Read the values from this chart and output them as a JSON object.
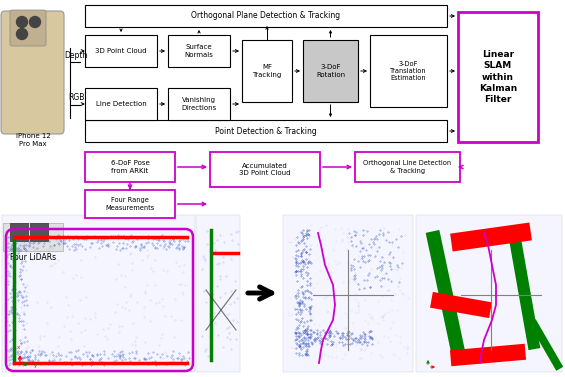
{
  "bg_color": "#ffffff",
  "magenta": "#cc00cc",
  "black": "#000000",
  "gray_box": "#c8c8c8",
  "top": {
    "iphone_label": "iPhone 12\nPro Max",
    "depth_label": "Depth",
    "rgb_label": "RGB",
    "top_span_label": "Orthogonal Plane Detection & Tracking",
    "bot_span_label": "Point Detection & Tracking",
    "pc_label": "3D Point Cloud",
    "sn_label": "Surface\nNormals",
    "ld_label": "Line Detection",
    "vd_label": "Vanishing\nDirections",
    "mf_label": "MF\nTracking",
    "rot_label": "3-DoF\nRotation",
    "trans_label": "3-DoF\nTranslation\nEstimation",
    "slam_label": "Linear\nSLAM\nwithin\nKalman\nFilter",
    "pose_label": "6-DoF Pose\nfrom ARKit",
    "accum_label": "Accumulated\n3D Point Cloud",
    "orth_line_label": "Orthogonal Line Detection\n& Tracking",
    "range_label": "Four Range\nMeasurements",
    "lidar_label": "Four LiDARs"
  }
}
